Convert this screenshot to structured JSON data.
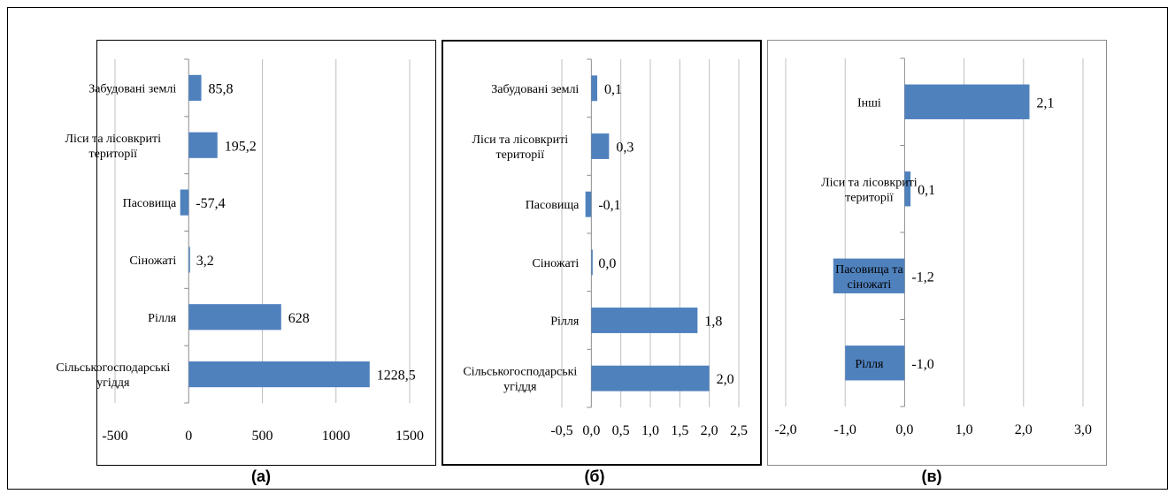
{
  "colors": {
    "bar": "#4f81bd",
    "grid": "#bfbfbf",
    "axis": "#8c8c8c"
  },
  "captions": [
    "(а)",
    "(б)",
    "(в)"
  ],
  "chart_data": [
    {
      "type": "bar",
      "orientation": "horizontal",
      "caption": "(а)",
      "categories": [
        "Забудовані землі",
        [
          "Ліси та лісовкриті",
          "території"
        ],
        "Пасовища",
        "Сіножаті",
        "Рілля",
        [
          "Сільськогосподарські",
          "угіддя"
        ]
      ],
      "values": [
        85.8,
        195.2,
        -57.4,
        3.2,
        628,
        1228.5
      ],
      "data_labels": [
        "85,8",
        "195,2",
        "-57,4",
        "3,2",
        "628",
        "1228,5"
      ],
      "xlim": [
        -500,
        1500
      ],
      "xticks": [
        -500,
        0,
        500,
        1000,
        1500
      ],
      "xtick_labels": [
        "-500",
        "0",
        "500",
        "1000",
        "1500"
      ],
      "grid": true
    },
    {
      "type": "bar",
      "orientation": "horizontal",
      "caption": "(б)",
      "categories": [
        "Забудовані землі",
        [
          "Ліси та лісовкриті",
          "території"
        ],
        "Пасовища",
        "Сіножаті",
        "Рілля",
        [
          "Сільськогосподарські",
          "угіддя"
        ]
      ],
      "values": [
        0.1,
        0.3,
        -0.1,
        0.0,
        1.8,
        2.0
      ],
      "data_labels": [
        "0,1",
        "0,3",
        "-0,1",
        "0,0",
        "1,8",
        "2,0"
      ],
      "xlim": [
        -0.5,
        2.5
      ],
      "xticks": [
        -0.5,
        0.0,
        0.5,
        1.0,
        1.5,
        2.0,
        2.5
      ],
      "xtick_labels": [
        "-0,5",
        "0,0",
        "0,5",
        "1,0",
        "1,5",
        "2,0",
        "2,5"
      ],
      "grid": true
    },
    {
      "type": "bar",
      "orientation": "horizontal",
      "caption": "(в)",
      "categories": [
        "Інші",
        [
          "Ліси та лісовкриті",
          "території"
        ],
        [
          "Пасовища та",
          "сіножаті"
        ],
        "Рілля"
      ],
      "values": [
        2.1,
        0.1,
        -1.2,
        -1.0
      ],
      "data_labels": [
        "2,1",
        "0,1",
        "-1,2",
        "-1,0"
      ],
      "xlim": [
        -2.0,
        3.0
      ],
      "xticks": [
        -2.0,
        -1.0,
        0.0,
        1.0,
        2.0,
        3.0
      ],
      "xtick_labels": [
        "-2,0",
        "-1,0",
        "0,0",
        "1,0",
        "2,0",
        "3,0"
      ],
      "grid": true
    }
  ]
}
